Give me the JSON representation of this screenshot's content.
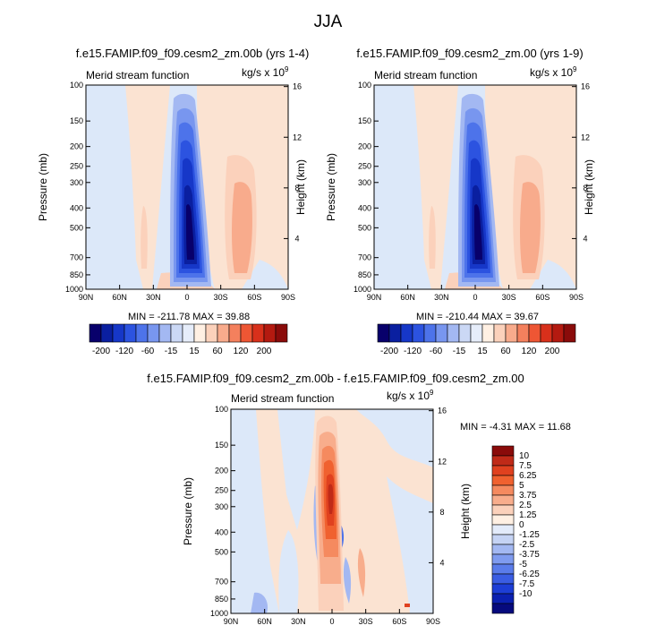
{
  "figure_title": "JJA",
  "chart_data": [
    {
      "type": "heatmap",
      "id": "top_left",
      "title": "f.e15.FAMIP.f09_f09.cesm2_zm.00b (yrs 1-4)",
      "left_label": "Merid stream function",
      "units_label": "kg/s x 10",
      "units_exp": "9",
      "ylabel": "Pressure (mb)",
      "y2label": "Height (km)",
      "x_ticks": [
        "90N",
        "60N",
        "30N",
        "0",
        "30S",
        "60S",
        "90S"
      ],
      "x_values": [
        90,
        60,
        30,
        0,
        -30,
        -60,
        -90
      ],
      "pressure_ticks": [
        100,
        150,
        200,
        250,
        300,
        400,
        500,
        700,
        850,
        1000
      ],
      "height_ticks": [
        4,
        8,
        12,
        16
      ],
      "stats": "MIN = -211.78   MAX =  39.88",
      "min": -211.78,
      "max": 39.88
    },
    {
      "type": "heatmap",
      "id": "top_right",
      "title": "f.e15.FAMIP.f09_f09.cesm2_zm.00 (yrs 1-9)",
      "left_label": "Merid stream function",
      "units_label": "kg/s x 10",
      "units_exp": "9",
      "ylabel": "Pressure (mb)",
      "y2label": "Height (km)",
      "x_ticks": [
        "90N",
        "60N",
        "30N",
        "0",
        "30S",
        "60S",
        "90S"
      ],
      "x_values": [
        90,
        60,
        30,
        0,
        -30,
        -60,
        -90
      ],
      "pressure_ticks": [
        100,
        150,
        200,
        250,
        300,
        400,
        500,
        700,
        850,
        1000
      ],
      "height_ticks": [
        4,
        8,
        12,
        16
      ],
      "stats": "MIN = -210.44   MAX =  39.67",
      "min": -210.44,
      "max": 39.67
    },
    {
      "type": "heatmap",
      "id": "difference",
      "title": "f.e15.FAMIP.f09_f09.cesm2_zm.00b - f.e15.FAMIP.f09_f09.cesm2_zm.00",
      "left_label": "Merid stream function",
      "units_label": "kg/s x 10",
      "units_exp": "9",
      "ylabel": "Pressure (mb)",
      "y2label": "Height (km)",
      "x_ticks": [
        "90N",
        "60N",
        "30N",
        "0",
        "30S",
        "60S",
        "90S"
      ],
      "x_values": [
        90,
        60,
        30,
        0,
        -30,
        -60,
        -90
      ],
      "pressure_ticks": [
        100,
        150,
        200,
        250,
        300,
        400,
        500,
        700,
        850,
        1000
      ],
      "height_ticks": [
        4,
        8,
        12,
        16
      ],
      "stats": "MIN =  -4.31   MAX =  11.68",
      "min": -4.31,
      "max": 11.68
    }
  ],
  "colorbar_top": {
    "colors": [
      "#08006b",
      "#0a1fa0",
      "#1637c8",
      "#2c53e0",
      "#4d73ea",
      "#7896ef",
      "#a3b8f2",
      "#cbd8f5",
      "#e6edfa",
      "#fff0e3",
      "#fbd1bb",
      "#f8ab8c",
      "#f4805d",
      "#ee5634",
      "#d8301b",
      "#b41a10",
      "#8a0b0a"
    ],
    "labels": [
      "-200",
      "-120",
      "-60",
      "-15",
      "15",
      "60",
      "120",
      "200"
    ]
  },
  "colorbar_diff": {
    "colors": [
      "#8a0b0a",
      "#c02a18",
      "#e0411f",
      "#f0612f",
      "#f58a5f",
      "#f8ad8c",
      "#fbd1bb",
      "#fff0e3",
      "#e3ebfa",
      "#c5d3f4",
      "#a3b8f2",
      "#7f9bef",
      "#5a7cea",
      "#3a5de3",
      "#1d3ed6",
      "#0b20b0",
      "#060a7d"
    ],
    "labels": [
      "10",
      "7.5",
      "6.25",
      "5",
      "3.75",
      "2.5",
      "1.25",
      "0",
      "-1.25",
      "-2.5",
      "-3.75",
      "-5",
      "-6.25",
      "-7.5",
      "-10"
    ]
  },
  "palette": {
    "background_warm": "#fbe3d2",
    "background_cool": "#dce8f9"
  }
}
